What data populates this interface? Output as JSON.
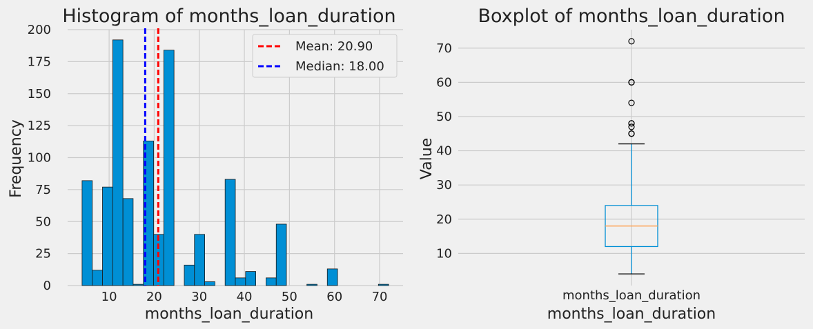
{
  "chart_data": [
    {
      "type": "histogram",
      "title": "Histogram of months_loan_duration",
      "xlabel": "months_loan_duration",
      "ylabel": "Frequency",
      "xlim": [
        0.8,
        75.2
      ],
      "ylim": [
        0,
        200
      ],
      "xticks": [
        10,
        20,
        30,
        40,
        50,
        60,
        70
      ],
      "yticks": [
        0,
        25,
        50,
        75,
        100,
        125,
        150,
        175,
        200
      ],
      "grid": true,
      "legend_position": "top-right",
      "bar_color": "#008fd5",
      "bins": [
        {
          "x0": 4.0,
          "x1": 6.27,
          "count": 82
        },
        {
          "x0": 6.27,
          "x1": 8.53,
          "count": 12
        },
        {
          "x0": 8.53,
          "x1": 10.8,
          "count": 77
        },
        {
          "x0": 10.8,
          "x1": 13.07,
          "count": 192
        },
        {
          "x0": 13.07,
          "x1": 15.33,
          "count": 68
        },
        {
          "x0": 15.33,
          "x1": 17.6,
          "count": 1
        },
        {
          "x0": 17.6,
          "x1": 19.87,
          "count": 113
        },
        {
          "x0": 19.87,
          "x1": 22.13,
          "count": 40
        },
        {
          "x0": 22.13,
          "x1": 24.4,
          "count": 184
        },
        {
          "x0": 24.4,
          "x1": 26.67,
          "count": 0
        },
        {
          "x0": 26.67,
          "x1": 28.93,
          "count": 16
        },
        {
          "x0": 28.93,
          "x1": 31.2,
          "count": 40
        },
        {
          "x0": 31.2,
          "x1": 33.47,
          "count": 3
        },
        {
          "x0": 33.47,
          "x1": 35.73,
          "count": 0
        },
        {
          "x0": 35.73,
          "x1": 38.0,
          "count": 83
        },
        {
          "x0": 38.0,
          "x1": 40.27,
          "count": 6
        },
        {
          "x0": 40.27,
          "x1": 42.53,
          "count": 11
        },
        {
          "x0": 42.53,
          "x1": 44.8,
          "count": 0
        },
        {
          "x0": 44.8,
          "x1": 47.07,
          "count": 6
        },
        {
          "x0": 47.07,
          "x1": 49.33,
          "count": 48
        },
        {
          "x0": 49.33,
          "x1": 51.6,
          "count": 0
        },
        {
          "x0": 51.6,
          "x1": 53.87,
          "count": 0
        },
        {
          "x0": 53.87,
          "x1": 56.13,
          "count": 1
        },
        {
          "x0": 56.13,
          "x1": 58.4,
          "count": 0
        },
        {
          "x0": 58.4,
          "x1": 60.67,
          "count": 13
        },
        {
          "x0": 60.67,
          "x1": 62.93,
          "count": 0
        },
        {
          "x0": 62.93,
          "x1": 65.2,
          "count": 0
        },
        {
          "x0": 65.2,
          "x1": 67.47,
          "count": 0
        },
        {
          "x0": 67.47,
          "x1": 69.73,
          "count": 0
        },
        {
          "x0": 69.73,
          "x1": 72.0,
          "count": 1
        }
      ],
      "reference_lines": [
        {
          "label": "Mean: 20.90",
          "value": 20.9,
          "color": "#ff0000",
          "style": "dashed"
        },
        {
          "label": "Median: 18.00",
          "value": 18.0,
          "color": "#0000ff",
          "style": "dashed"
        }
      ]
    },
    {
      "type": "boxplot",
      "title": "Boxplot of months_loan_duration",
      "xlabel": "months_loan_duration",
      "ylabel": "Value",
      "category": "months_loan_duration",
      "ylim": [
        0.6,
        75.4
      ],
      "yticks": [
        10,
        20,
        30,
        40,
        50,
        60,
        70
      ],
      "grid": true,
      "box_color": "#008fd5",
      "median_color": "#ff9e4a",
      "stats": {
        "whisker_low": 4,
        "q1": 12,
        "median": 18,
        "q3": 24,
        "whisker_high": 42
      },
      "outliers": [
        45,
        45,
        45,
        47,
        48,
        48,
        54,
        60,
        60,
        60,
        72
      ]
    }
  ]
}
